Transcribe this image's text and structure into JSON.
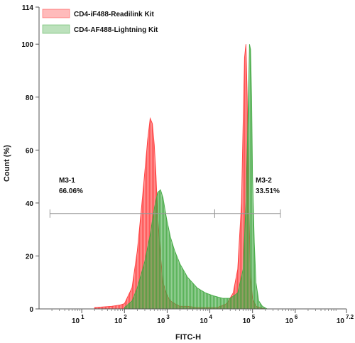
{
  "chart_data": {
    "type": "area",
    "xlabel": "FITC-H",
    "ylabel": "Count (%)",
    "x_scale": "log",
    "xlim": [
      1,
      15848932
    ],
    "ylim": [
      0,
      114
    ],
    "y_ticks": [
      0,
      20,
      40,
      60,
      80,
      100,
      114
    ],
    "x_ticks": [
      {
        "base": "10",
        "exp": "1",
        "value": 10
      },
      {
        "base": "10",
        "exp": "2",
        "value": 100
      },
      {
        "base": "10",
        "exp": "3",
        "value": 1000
      },
      {
        "base": "10",
        "exp": "4",
        "value": 10000
      },
      {
        "base": "10",
        "exp": "5",
        "value": 100000
      },
      {
        "base": "10",
        "exp": "6",
        "value": 1000000
      },
      {
        "base": "10",
        "exp": "7.2",
        "value": 15848932
      }
    ],
    "legend_position": "top-left",
    "series": [
      {
        "name": "CD4-iF488-Readilink Kit",
        "color": "#ff3b3b",
        "x": [
          20,
          50,
          80,
          100,
          150,
          200,
          250,
          300,
          350,
          400,
          450,
          500,
          550,
          600,
          700,
          800,
          1000,
          1200,
          1500,
          2000,
          3000,
          5000,
          8000,
          15000,
          25000,
          35000,
          45000,
          55000,
          60000,
          65000,
          70000,
          75000,
          80000,
          90000,
          100000,
          120000,
          150000,
          200000
        ],
        "y": [
          0.5,
          1,
          1.5,
          2,
          8,
          22,
          38,
          52,
          64,
          72,
          70,
          62,
          50,
          35,
          20,
          10,
          5,
          3,
          2,
          1,
          1,
          0.5,
          0.5,
          0.5,
          2,
          6,
          15,
          40,
          70,
          95,
          100,
          80,
          45,
          12,
          4,
          1,
          0.5,
          0
        ]
      },
      {
        "name": "CD4-AF488-Lightning Kit",
        "color": "#3fa83f",
        "x": [
          100,
          150,
          200,
          300,
          400,
          500,
          600,
          700,
          800,
          900,
          1000,
          1200,
          1500,
          2000,
          3000,
          5000,
          8000,
          12000,
          20000,
          30000,
          45000,
          60000,
          70000,
          80000,
          85000,
          90000,
          95000,
          100000,
          110000,
          120000,
          140000,
          170000,
          220000
        ],
        "y": [
          0.5,
          3,
          8,
          18,
          28,
          38,
          44,
          45,
          42,
          37,
          33,
          27,
          22,
          17,
          12,
          8,
          6,
          5,
          4,
          4,
          6,
          15,
          40,
          80,
          100,
          98,
          80,
          50,
          25,
          10,
          3,
          1,
          0
        ]
      }
    ],
    "gates": [
      {
        "name": "M3-1",
        "percent": "66.06%",
        "x_range": [
          1.8,
          13000
        ],
        "y": 36
      },
      {
        "name": "M3-2",
        "percent": "33.51%",
        "x_range": [
          13000,
          450000
        ],
        "y": 36
      }
    ]
  }
}
